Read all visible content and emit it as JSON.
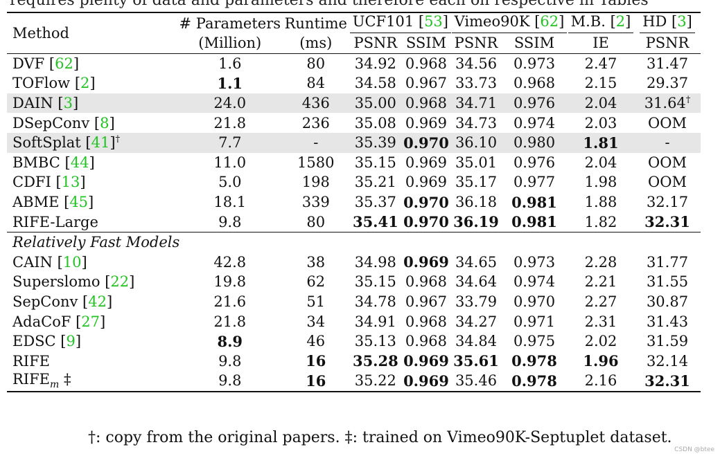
{
  "clipped_caption": "requires plenty of data and parameters and therefore each on respective in Tables",
  "header": {
    "method": "Method",
    "params": "# Parameters",
    "params_unit": "(Million)",
    "runtime": "Runtime",
    "runtime_unit": "(ms)",
    "ucf": "UCF101",
    "ucf_ref": "53",
    "vimeo": "Vimeo90K",
    "vimeo_ref": "62",
    "mb": "M.B.",
    "mb_ref": "2",
    "hd": "HD",
    "hd_ref": "3",
    "psnr": "PSNR",
    "ssim": "SSIM",
    "ie": "IE"
  },
  "rows": [
    {
      "name": "DVF",
      "ref": "62",
      "sup": "",
      "params": "1.6",
      "runtime": "80",
      "ucf_psnr": "34.92",
      "ucf_ssim": "0.968",
      "vim_psnr": "34.56",
      "vim_ssim": "0.973",
      "mb_ie": "2.47",
      "hd_psnr": "31.47"
    },
    {
      "name": "TOFlow",
      "ref": "2",
      "sup": "",
      "params": "1.1",
      "runtime": "84",
      "ucf_psnr": "34.58",
      "ucf_ssim": "0.967",
      "vim_psnr": "33.73",
      "vim_ssim": "0.968",
      "mb_ie": "2.15",
      "hd_psnr": "29.37"
    },
    {
      "name": "DAIN",
      "ref": "3",
      "sup": "",
      "params": "24.0",
      "runtime": "436",
      "ucf_psnr": "35.00",
      "ucf_ssim": "0.968",
      "vim_psnr": "34.71",
      "vim_ssim": "0.976",
      "mb_ie": "2.04",
      "hd_psnr": "31.64",
      "hd_sup": "†"
    },
    {
      "name": "DSepConv",
      "ref": "8",
      "sup": "",
      "params": "21.8",
      "runtime": "236",
      "ucf_psnr": "35.08",
      "ucf_ssim": "0.969",
      "vim_psnr": "34.73",
      "vim_ssim": "0.974",
      "mb_ie": "2.03",
      "hd_psnr": "OOM"
    },
    {
      "name": "SoftSplat",
      "ref": "41",
      "sup": "†",
      "params": "7.7",
      "runtime": "-",
      "ucf_psnr": "35.39",
      "ucf_ssim": "0.970",
      "vim_psnr": "36.10",
      "vim_ssim": "0.980",
      "mb_ie": "1.81",
      "hd_psnr": "-"
    },
    {
      "name": "BMBC",
      "ref": "44",
      "sup": "",
      "params": "11.0",
      "runtime": "1580",
      "ucf_psnr": "35.15",
      "ucf_ssim": "0.969",
      "vim_psnr": "35.01",
      "vim_ssim": "0.976",
      "mb_ie": "2.04",
      "hd_psnr": "OOM"
    },
    {
      "name": "CDFI",
      "ref": "13",
      "sup": "",
      "params": "5.0",
      "runtime": "198",
      "ucf_psnr": "35.21",
      "ucf_ssim": "0.969",
      "vim_psnr": "35.17",
      "vim_ssim": "0.977",
      "mb_ie": "1.98",
      "hd_psnr": "OOM"
    },
    {
      "name": "ABME",
      "ref": "45",
      "sup": "",
      "params": "18.1",
      "runtime": "339",
      "ucf_psnr": "35.37",
      "ucf_ssim": "0.970",
      "vim_psnr": "36.18",
      "vim_ssim": "0.981",
      "mb_ie": "1.88",
      "hd_psnr": "32.17"
    },
    {
      "name": "RIFE-Large",
      "ref": "",
      "sup": "",
      "params": "9.8",
      "runtime": "80",
      "ucf_psnr": "35.41",
      "ucf_ssim": "0.970",
      "vim_psnr": "36.19",
      "vim_ssim": "0.981",
      "mb_ie": "1.82",
      "hd_psnr": "32.31"
    }
  ],
  "section_label": "Relatively Fast Models",
  "fast_rows": [
    {
      "name": "CAIN",
      "ref": "10",
      "params": "42.8",
      "runtime": "38",
      "ucf_psnr": "34.98",
      "ucf_ssim": "0.969",
      "vim_psnr": "34.65",
      "vim_ssim": "0.973",
      "mb_ie": "2.28",
      "hd_psnr": "31.77"
    },
    {
      "name": "Superslomo",
      "ref": "22",
      "params": "19.8",
      "runtime": "62",
      "ucf_psnr": "35.15",
      "ucf_ssim": "0.968",
      "vim_psnr": "34.64",
      "vim_ssim": "0.974",
      "mb_ie": "2.21",
      "hd_psnr": "31.55"
    },
    {
      "name": "SepConv",
      "ref": "42",
      "params": "21.6",
      "runtime": "51",
      "ucf_psnr": "34.78",
      "ucf_ssim": "0.967",
      "vim_psnr": "33.79",
      "vim_ssim": "0.970",
      "mb_ie": "2.27",
      "hd_psnr": "30.87"
    },
    {
      "name": "AdaCoF",
      "ref": "27",
      "params": "21.8",
      "runtime": "34",
      "ucf_psnr": "34.91",
      "ucf_ssim": "0.968",
      "vim_psnr": "34.27",
      "vim_ssim": "0.971",
      "mb_ie": "2.31",
      "hd_psnr": "31.43"
    },
    {
      "name": "EDSC",
      "ref": "9",
      "params": "8.9",
      "runtime": "46",
      "ucf_psnr": "35.13",
      "ucf_ssim": "0.968",
      "vim_psnr": "34.84",
      "vim_ssim": "0.975",
      "mb_ie": "2.02",
      "hd_psnr": "31.59"
    },
    {
      "name": "RIFE",
      "ref": "",
      "params": "9.8",
      "runtime": "16",
      "ucf_psnr": "35.28",
      "ucf_ssim": "0.969",
      "vim_psnr": "35.61",
      "vim_ssim": "0.978",
      "mb_ie": "1.96",
      "hd_psnr": "32.14"
    },
    {
      "name": "RIFE",
      "sub": "m",
      "dagger": "‡",
      "params": "9.8",
      "runtime": "16",
      "ucf_psnr": "35.22",
      "ucf_ssim": "0.969",
      "vim_psnr": "35.46",
      "vim_ssim": "0.978",
      "mb_ie": "2.16",
      "hd_psnr": "32.31"
    }
  ],
  "footnote": "†: copy from the original papers. ‡: trained on Vimeo90K-Septuplet dataset.",
  "watermark": "CSDN @btee",
  "colors": {
    "reference": "#22c322",
    "highlight_row": "#e6e6e6"
  }
}
